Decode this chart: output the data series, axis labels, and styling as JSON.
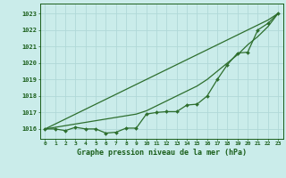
{
  "title": "Graphe pression niveau de la mer (hPa)",
  "xlabel_hours": [
    0,
    1,
    2,
    3,
    4,
    5,
    6,
    7,
    8,
    9,
    10,
    11,
    12,
    13,
    14,
    15,
    16,
    17,
    18,
    19,
    20,
    21,
    22,
    23
  ],
  "ylim": [
    1015.4,
    1023.6
  ],
  "xlim": [
    -0.5,
    23.5
  ],
  "yticks": [
    1016,
    1017,
    1018,
    1019,
    1020,
    1021,
    1022,
    1023
  ],
  "background_color": "#caecea",
  "grid_color": "#b0d8d8",
  "line_color": "#2d6e2d",
  "marker_color": "#2d6e2d",
  "text_color": "#1a5e1a",
  "line_smooth1": [
    1016.0,
    1016.3,
    1016.6,
    1016.9,
    1017.2,
    1017.5,
    1017.8,
    1018.1,
    1018.4,
    1018.7,
    1019.0,
    1019.3,
    1019.6,
    1019.9,
    1020.2,
    1020.5,
    1020.8,
    1021.1,
    1021.4,
    1021.7,
    1022.0,
    1022.3,
    1022.6,
    1023.0
  ],
  "line_smooth2": [
    1016.0,
    1016.1,
    1016.2,
    1016.3,
    1016.4,
    1016.5,
    1016.6,
    1016.7,
    1016.8,
    1016.9,
    1017.1,
    1017.4,
    1017.7,
    1018.0,
    1018.3,
    1018.6,
    1019.0,
    1019.5,
    1020.0,
    1020.5,
    1021.1,
    1021.6,
    1022.2,
    1023.0
  ],
  "line_jagged": [
    1016.0,
    1016.0,
    1015.9,
    1016.1,
    1016.0,
    1016.0,
    1015.75,
    1015.8,
    1016.05,
    1016.05,
    1016.9,
    1017.0,
    1017.05,
    1017.05,
    1017.45,
    1017.5,
    1018.0,
    1019.0,
    1019.9,
    1020.6,
    1020.65,
    1022.0,
    1022.4,
    1023.0
  ]
}
